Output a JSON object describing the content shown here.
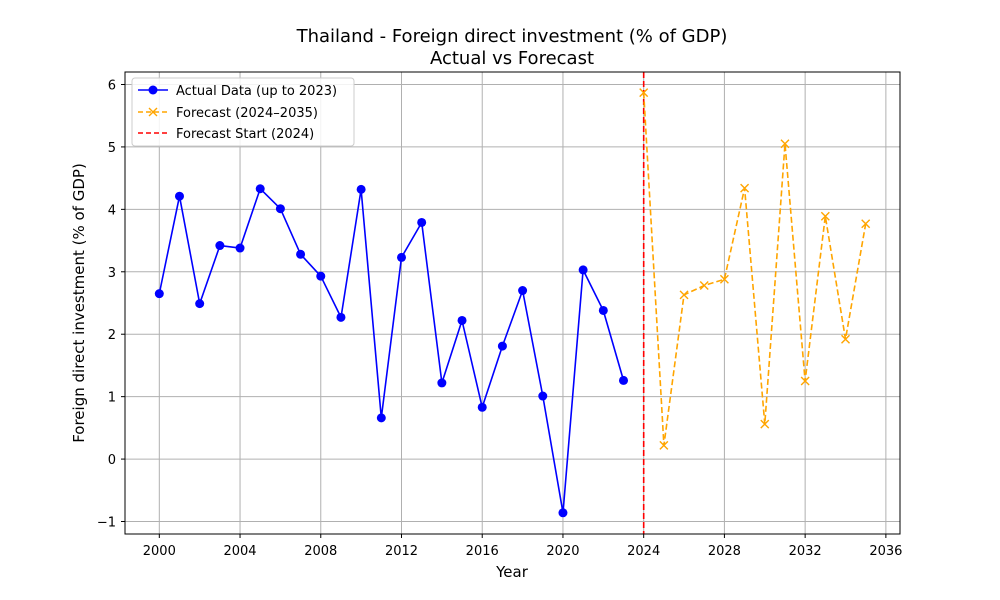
{
  "chart_data": {
    "type": "line",
    "title": "Thailand - Foreign direct investment (% of GDP)",
    "subtitle": "Actual vs Forecast",
    "xlabel": "Year",
    "ylabel": "Foreign direct investment (% of GDP)",
    "xlim": [
      1998.3,
      2036.7
    ],
    "ylim": [
      -1.2,
      6.2
    ],
    "xticks": [
      2000,
      2004,
      2008,
      2012,
      2016,
      2020,
      2024,
      2028,
      2032,
      2036
    ],
    "xtick_labels": [
      "2000",
      "2004",
      "2008",
      "2012",
      "2016",
      "2020",
      "2024",
      "2028",
      "2032",
      "2036"
    ],
    "yticks": [
      -1,
      0,
      1,
      2,
      3,
      4,
      5,
      6
    ],
    "ytick_labels": [
      "−1",
      "0",
      "1",
      "2",
      "3",
      "4",
      "5",
      "6"
    ],
    "grid": true,
    "legend_position": "top-left",
    "series": [
      {
        "name": "Actual Data (up to 2023)",
        "color": "#0000ff",
        "marker": "circle",
        "linestyle": "solid",
        "x": [
          2000,
          2001,
          2002,
          2003,
          2004,
          2005,
          2006,
          2007,
          2008,
          2009,
          2010,
          2011,
          2012,
          2013,
          2014,
          2015,
          2016,
          2017,
          2018,
          2019,
          2020,
          2021,
          2022,
          2023
        ],
        "y": [
          2.65,
          4.21,
          2.49,
          3.42,
          3.38,
          4.33,
          4.01,
          3.28,
          2.93,
          2.27,
          4.32,
          0.66,
          3.23,
          3.79,
          1.22,
          2.22,
          0.83,
          1.81,
          2.7,
          1.01,
          -0.86,
          3.03,
          2.38,
          1.26
        ]
      },
      {
        "name": "Forecast (2024–2035)",
        "color": "#ffa500",
        "marker": "x",
        "linestyle": "dashed",
        "x": [
          2024,
          2025,
          2026,
          2027,
          2028,
          2029,
          2030,
          2031,
          2032,
          2033,
          2034,
          2035
        ],
        "y": [
          5.87,
          0.22,
          2.63,
          2.78,
          2.88,
          4.34,
          0.56,
          5.05,
          1.25,
          3.89,
          1.92,
          3.77
        ]
      }
    ],
    "vline": {
      "name": "Forecast Start (2024)",
      "x": 2024,
      "color": "#ff0000",
      "linestyle": "dashed"
    }
  }
}
